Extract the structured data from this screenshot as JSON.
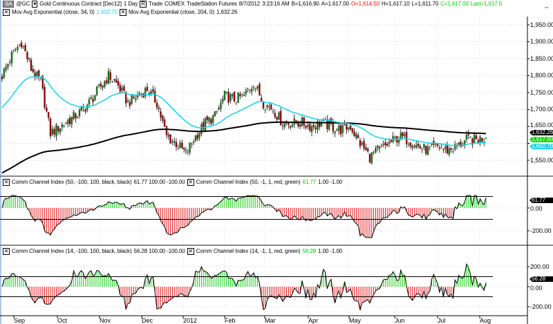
{
  "header": {
    "symbol_badge": "SA",
    "symbol": "@GC",
    "description": "Gold Continuous Contract [Dec12]",
    "interval": "1 Day",
    "mode_badge": "R",
    "trade_label": "Trade",
    "exchange": "COMEX",
    "data_source": "TradeStation Futures",
    "date": "8/7/2012",
    "time": "3:23:16 AM",
    "bid": "B=1,616.90",
    "ask": "A=1,617.00",
    "open": "O=1,614.50",
    "high": "H=1,617.10",
    "low": "L=1,611.70",
    "close": "C=1,617.00",
    "last": "Last=1,617.0"
  },
  "studies": {
    "ema34_label": "Mov Avg Exponential  (close, 34, 0)",
    "ema34_value": "1,602.70",
    "ema204_label": "Mov Avg Exponential  (close, 204, 0)",
    "ema204_value": "1,632.26",
    "cci50_label": "Comm Channel Index  (50, -100, 100, black, black)",
    "cci50_values": "61.77  100.00  -100.00",
    "cci50b_label": "Comm Channel Index  (50, -1, 1, red, green)",
    "cci50b_value": "61.77",
    "cci50b_rest": "1.00  -1.00",
    "cci14_label": "Comm Channel Index  (14, -100, 100, black, black)",
    "cci14_values": "56.28  100.00  -100.00",
    "cci14b_label": "Comm Channel Index  (14, -1, 1, red, green)",
    "cci14b_value": "56.28",
    "cci14b_rest": "1.00  -1.00"
  },
  "price_axis": [
    "1,950.00",
    "1,900.00",
    "1,850.00",
    "1,800.00",
    "1,750.00",
    "1,700.00",
    "1,650.00",
    "1,550.00"
  ],
  "price_tags": {
    "ema204": "1,632.26",
    "last": "1,617.00",
    "ema34": "1,602.70"
  },
  "cci50_axis": [
    "0.00",
    "-200.00"
  ],
  "cci50_tag": "61.77",
  "cci14_axis": [
    "200.00",
    "0.00",
    "-200.00"
  ],
  "cci14_tag": "56.28",
  "months": [
    "Sep",
    "Oct",
    "Nov",
    "Dec",
    "2012",
    "Feb",
    "Mar",
    "Apr",
    "May",
    "Jun",
    "Jul",
    "Aug"
  ],
  "colors": {
    "up": "#1a6b1a",
    "down": "#8b0000",
    "ema34": "#22d3e8",
    "ema204": "#000000",
    "cci_up": "#00cc00",
    "cci_down": "#dd0000",
    "bid_red": "#ff0000",
    "close_green": "#00cc00"
  },
  "chart_data": {
    "type": "candlestick",
    "ylim": [
      1520,
      1960
    ],
    "weekly_closes_approx": [
      1800,
      1860,
      1900,
      1820,
      1780,
      1630,
      1650,
      1670,
      1690,
      1720,
      1760,
      1800,
      1770,
      1720,
      1740,
      1760,
      1720,
      1620,
      1600,
      1570,
      1620,
      1660,
      1680,
      1740,
      1730,
      1740,
      1780,
      1720,
      1700,
      1660,
      1660,
      1660,
      1650,
      1660,
      1650,
      1640,
      1650,
      1600,
      1560,
      1580,
      1600,
      1620,
      1610,
      1590,
      1580,
      1590,
      1580,
      1590,
      1610,
      1610,
      1617
    ],
    "last_bar": {
      "open": 1614.5,
      "high": 1617.1,
      "low": 1611.7,
      "close": 1617.0
    }
  }
}
